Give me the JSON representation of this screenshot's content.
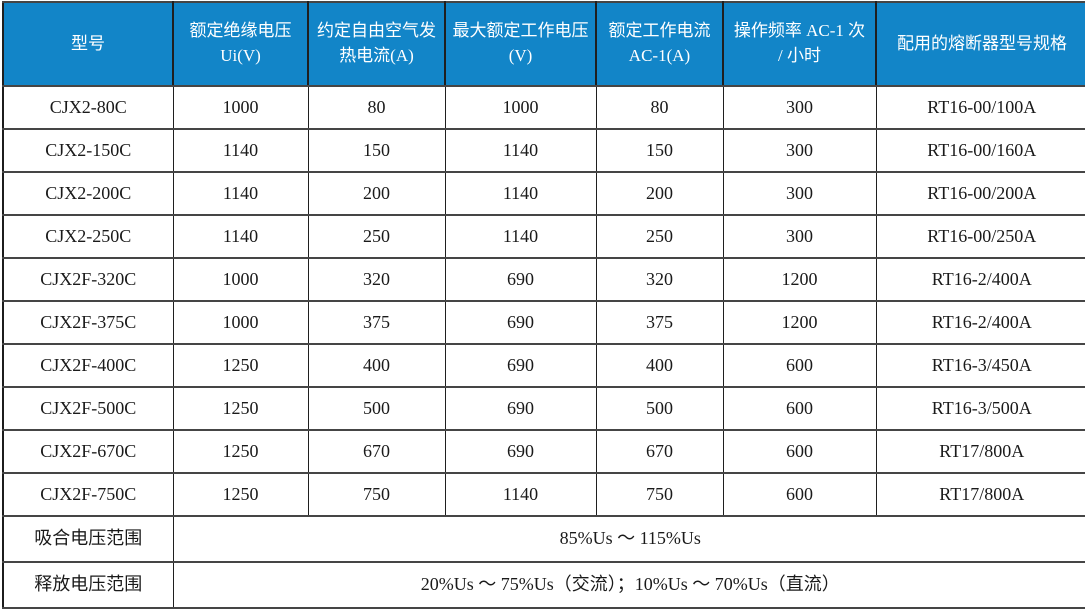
{
  "table": {
    "columns": [
      {
        "label": "型号"
      },
      {
        "label": "额定绝缘电压 Ui(V)"
      },
      {
        "label": "约定自由空气发热电流(A)"
      },
      {
        "label": "最大额定工作电压(V)"
      },
      {
        "label": "额定工作电流 AC-1(A)"
      },
      {
        "label": "操作频率 AC-1 次 / 小时"
      },
      {
        "label": "配用的熔断器型号规格"
      }
    ],
    "rows": [
      [
        "CJX2-80C",
        "1000",
        "80",
        "1000",
        "80",
        "300",
        "RT16-00/100A"
      ],
      [
        "CJX2-150C",
        "1140",
        "150",
        "1140",
        "150",
        "300",
        "RT16-00/160A"
      ],
      [
        "CJX2-200C",
        "1140",
        "200",
        "1140",
        "200",
        "300",
        "RT16-00/200A"
      ],
      [
        "CJX2-250C",
        "1140",
        "250",
        "1140",
        "250",
        "300",
        "RT16-00/250A"
      ],
      [
        "CJX2F-320C",
        "1000",
        "320",
        "690",
        "320",
        "1200",
        "RT16-2/400A"
      ],
      [
        "CJX2F-375C",
        "1000",
        "375",
        "690",
        "375",
        "1200",
        "RT16-2/400A"
      ],
      [
        "CJX2F-400C",
        "1250",
        "400",
        "690",
        "400",
        "600",
        "RT16-3/450A"
      ],
      [
        "CJX2F-500C",
        "1250",
        "500",
        "690",
        "500",
        "600",
        "RT16-3/500A"
      ],
      [
        "CJX2F-670C",
        "1250",
        "670",
        "690",
        "670",
        "600",
        "RT17/800A"
      ],
      [
        "CJX2F-750C",
        "1250",
        "750",
        "1140",
        "750",
        "600",
        "RT17/800A"
      ]
    ],
    "footer_rows": [
      {
        "label": "吸合电压范围",
        "value": "85%Us ～ 115%Us"
      },
      {
        "label": "释放电压范围",
        "value": "20%Us ～ 75%Us（交流）；10%Us ～ 70%Us（直流）"
      }
    ]
  },
  "colors": {
    "header_bg": "#1285C8",
    "header_text": "#FFFFFF",
    "grid_line": "#454545",
    "body_text": "#1A1A1A"
  }
}
